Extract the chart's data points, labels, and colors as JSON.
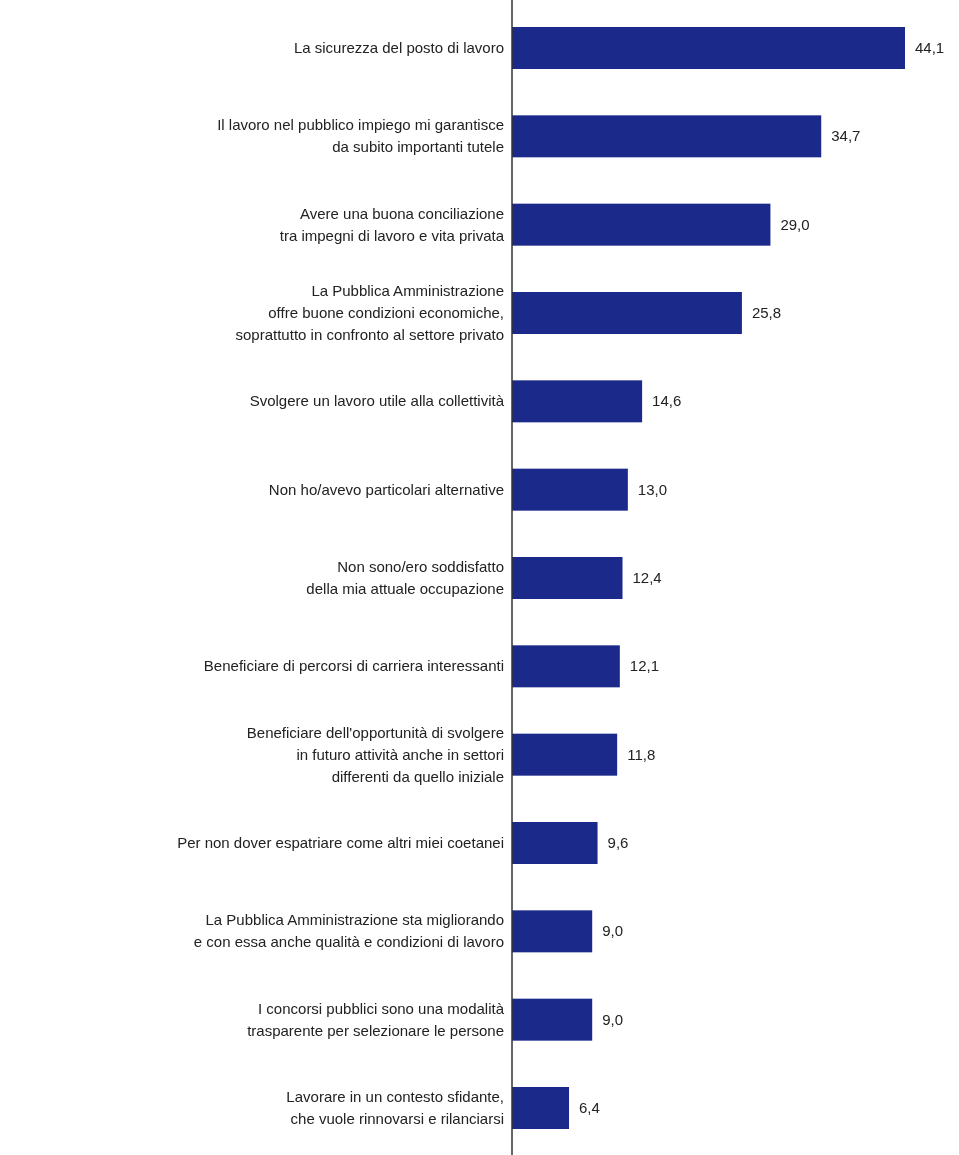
{
  "chart_data": {
    "type": "bar",
    "orientation": "horizontal",
    "color": "#1b2a8a",
    "categories": [
      "La sicurezza del posto di lavoro",
      "Il lavoro nel pubblico impiego mi garantisce\nda subito importanti tutele",
      "Avere una buona conciliazione\ntra impegni di lavoro e vita privata",
      "La Pubblica Amministrazione\noffre buone condizioni economiche,\nsoprattutto in confronto al settore privato",
      "Svolgere un lavoro utile alla collettività",
      "Non ho/avevo particolari alternative",
      "Non sono/ero soddisfatto\ndella mia attuale occupazione",
      "Beneficiare di percorsi di carriera interessanti",
      "Beneficiare dell'opportunità di svolgere\nin futuro attività anche in settori\ndifferenti da quello iniziale",
      "Per non dover espatriare come altri miei coetanei",
      "La Pubblica Amministrazione sta migliorando\ne con essa anche qualità e condizioni di lavoro",
      "I concorsi pubblici sono una modalità\ntrasparente per selezionare le persone",
      "Lavorare in un contesto sfidante,\nche vuole rinnovarsi e rilanciarsi"
    ],
    "values": [
      44.1,
      34.7,
      29.0,
      25.8,
      14.6,
      13.0,
      12.4,
      12.1,
      11.8,
      9.6,
      9.0,
      9.0,
      6.4
    ],
    "value_labels": [
      "44,1",
      "34,7",
      "29,0",
      "25,8",
      "14,6",
      "13,0",
      "12,4",
      "12,1",
      "11,8",
      "9,6",
      "9,0",
      "9,0",
      "6,4"
    ]
  }
}
